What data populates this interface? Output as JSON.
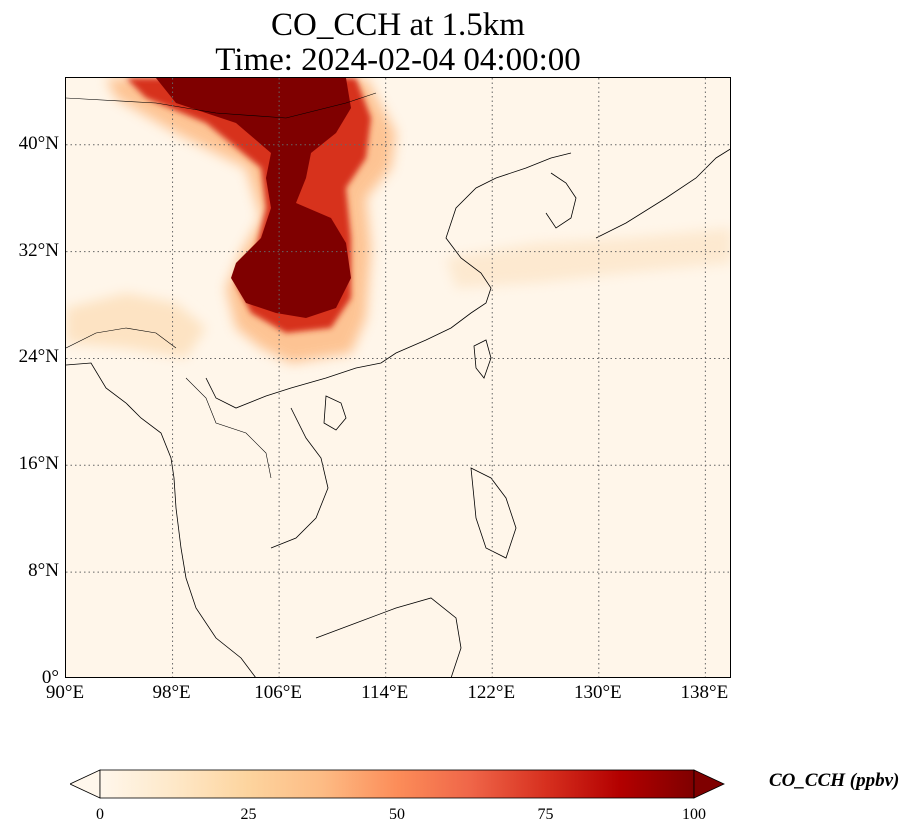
{
  "title": {
    "line1": "CO_CCH at 1.5km",
    "line2": "Time: 2024-02-04 04:00:00"
  },
  "map": {
    "projection": "PlateCarree",
    "lon_range": [
      90,
      140
    ],
    "lat_range": [
      0,
      45
    ],
    "lat_ticks": [
      {
        "value": 0,
        "label": "0°"
      },
      {
        "value": 8,
        "label": "8°N"
      },
      {
        "value": 16,
        "label": "16°N"
      },
      {
        "value": 24,
        "label": "24°N"
      },
      {
        "value": 32,
        "label": "32°N"
      },
      {
        "value": 40,
        "label": "40°N"
      }
    ],
    "lon_ticks": [
      {
        "value": 90,
        "label": "90°E"
      },
      {
        "value": 98,
        "label": "98°E"
      },
      {
        "value": 106,
        "label": "106°E"
      },
      {
        "value": 114,
        "label": "114°E"
      },
      {
        "value": 122,
        "label": "122°E"
      },
      {
        "value": 130,
        "label": "130°E"
      },
      {
        "value": 138,
        "label": "138°E"
      }
    ],
    "gridlines": "dotted",
    "background_color": "#fff6ea",
    "coastline_color": "#000000",
    "plume_color": "#7f0000"
  },
  "colorbar": {
    "title": "CO_CCH (ppbv)",
    "cmap": "OrRd",
    "min": 0,
    "max": 100,
    "extend": "both",
    "tick_labels": [
      "0",
      "25",
      "50",
      "75",
      "100"
    ],
    "colors": [
      "#fff7ec",
      "#fee8c8",
      "#fdd49e",
      "#fdbb84",
      "#fc8d59",
      "#ef6548",
      "#d7301f",
      "#b30000",
      "#7f0000"
    ]
  }
}
